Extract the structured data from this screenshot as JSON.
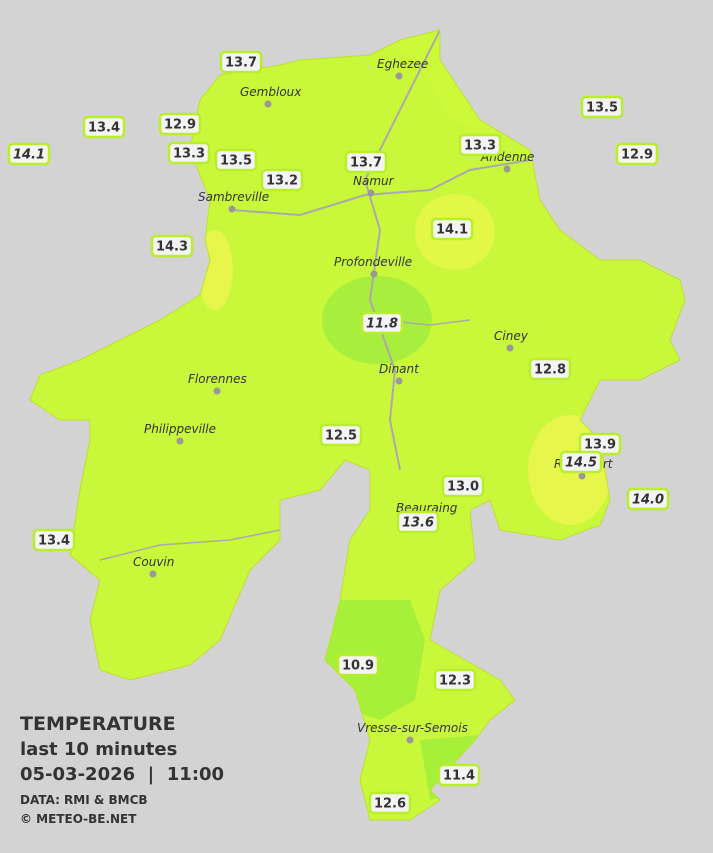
{
  "legend": {
    "title": "TEMPERATURE",
    "period": "last 10 minutes",
    "datetime": "05-03-2026  |  11:00",
    "source": "DATA: RMI & BMCB",
    "copyright": "© METEO-BE.NET"
  },
  "cities": [
    "Eghezee",
    "Gembloux",
    "Andenne",
    "Namur",
    "Sambreville",
    "Profondeville",
    "Ciney",
    "Dinant",
    "Florennes",
    "Philippeville",
    "Rochefort",
    "Beauraing",
    "Couvin",
    "Vresse-sur-Semois"
  ],
  "temperatures": [
    "13.7",
    "13.4",
    "14.1",
    "12.9",
    "13.3",
    "13.5",
    "13.2",
    "13.7",
    "13.3",
    "13.5",
    "12.9",
    "14.3",
    "14.1",
    "11.8",
    "12.8",
    "12.5",
    "13.9",
    "14.5",
    "14.0",
    "13.0",
    "13.6",
    "13.4",
    "10.9",
    "12.3",
    "11.4",
    "12.6"
  ]
}
